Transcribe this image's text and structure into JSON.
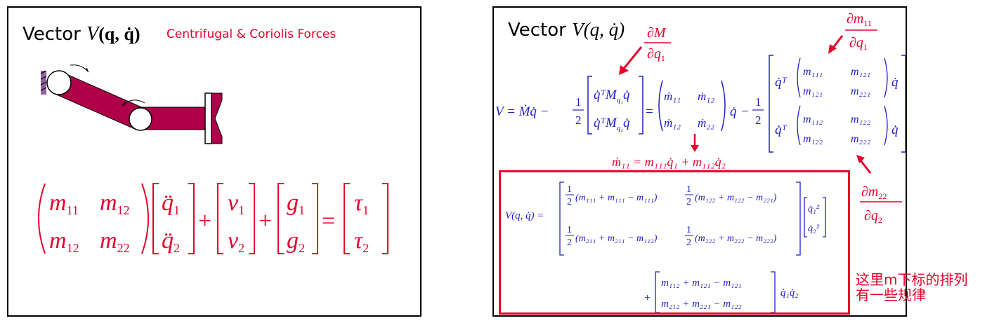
{
  "left": {
    "title_word": "Vector",
    "title_math_V": "V",
    "title_math_args": "(q, q̇)",
    "subtitle": "Centrifugal & Coriolis Forces",
    "equation": {
      "m11": "m",
      "m11_sub": "11",
      "m12": "m",
      "m12_sub": "12",
      "m22": "m",
      "m22_sub": "22",
      "q1": "q̈",
      "q1_sub": "1",
      "q2": "q̈",
      "q2_sub": "2",
      "v1": "v",
      "v1_sub": "1",
      "v2": "v",
      "v2_sub": "2",
      "g1": "g",
      "g1_sub": "1",
      "g2": "g",
      "g2_sub": "2",
      "t1": "τ",
      "t1_sub": "1",
      "t2": "τ",
      "t2_sub": "2",
      "plus": "+",
      "equals": "="
    },
    "colors": {
      "arm": "#b0004a",
      "eq": "#e8002a"
    }
  },
  "right": {
    "title_word": "Vector",
    "title_math": "V(q, q̇)",
    "dM_num": "∂M",
    "dM_den": "∂q",
    "dM_den_sub": "1",
    "dm11_num": "∂m",
    "dm11_num_sub": "11",
    "dm11_den": "∂q",
    "dm11_den_sub": "1",
    "dm22_num": "∂m",
    "dm22_num_sub": "22",
    "dm22_den": "∂q",
    "dm22_den_sub": "2",
    "main_eq_lhs": "V = Ṁq̇ −",
    "half": "1",
    "half_den": "2",
    "mat_row1": "q̇ᵀM",
    "mat_row1_sub": "q₁",
    "mat_row1_end": "q̇",
    "mat_row2": "q̇ᵀM",
    "mat_row2_sub": "q₂",
    "mat_row2_end": "q̇",
    "eq_sign": "=",
    "mdot11": "ṁ₁₁",
    "mdot12": "ṁ₁₂",
    "mdot12b": "ṁ₁₂",
    "mdot22": "ṁ₂₂",
    "qdot": "q̇",
    "minus": "−",
    "qT": "q̇ᵀ",
    "m111": "m₁₁₁",
    "m121": "m₁₂₁",
    "m121b": "m₁₂₁",
    "m221": "m₂₂₁",
    "m112": "m₁₁₂",
    "m122": "m₁₂₂",
    "m122b": "m₁₂₂",
    "m222": "m₂₂₂",
    "mdot_expansion": "ṁ₁₁ = m₁₁₁q̇₁ + m₁₁₂q̇₂",
    "box_lhs": "V(q, q̇) =",
    "box_r1c1": "(m₁₁₁ + m₁₁₁ − m₁₁₁)",
    "box_r1c2": "(m₁₂₂ + m₁₂₂ − m₂₂₁)",
    "box_r2c1": "(m₂₁₁ + m₂₁₁ − m₁₁₂)",
    "box_r2c2": "(m₂₂₂ + m₂₂₂ − m₂₂₂)",
    "box_q1sq": "q̇₁²",
    "box_q2sq": "q̇₂²",
    "box_plus": "+",
    "box_r3": "m₁₁₂ + m₁₂₁ − m₁₂₁",
    "box_r4": "m₂₁₂ + m₂₂₁ − m₁₂₂",
    "box_qq": "q̇₁q̇₂",
    "note_line1": "这里m下标的排列",
    "note_line2": "有一些规律",
    "colors": {
      "blue": "#2020c8",
      "red": "#e8002a"
    }
  }
}
